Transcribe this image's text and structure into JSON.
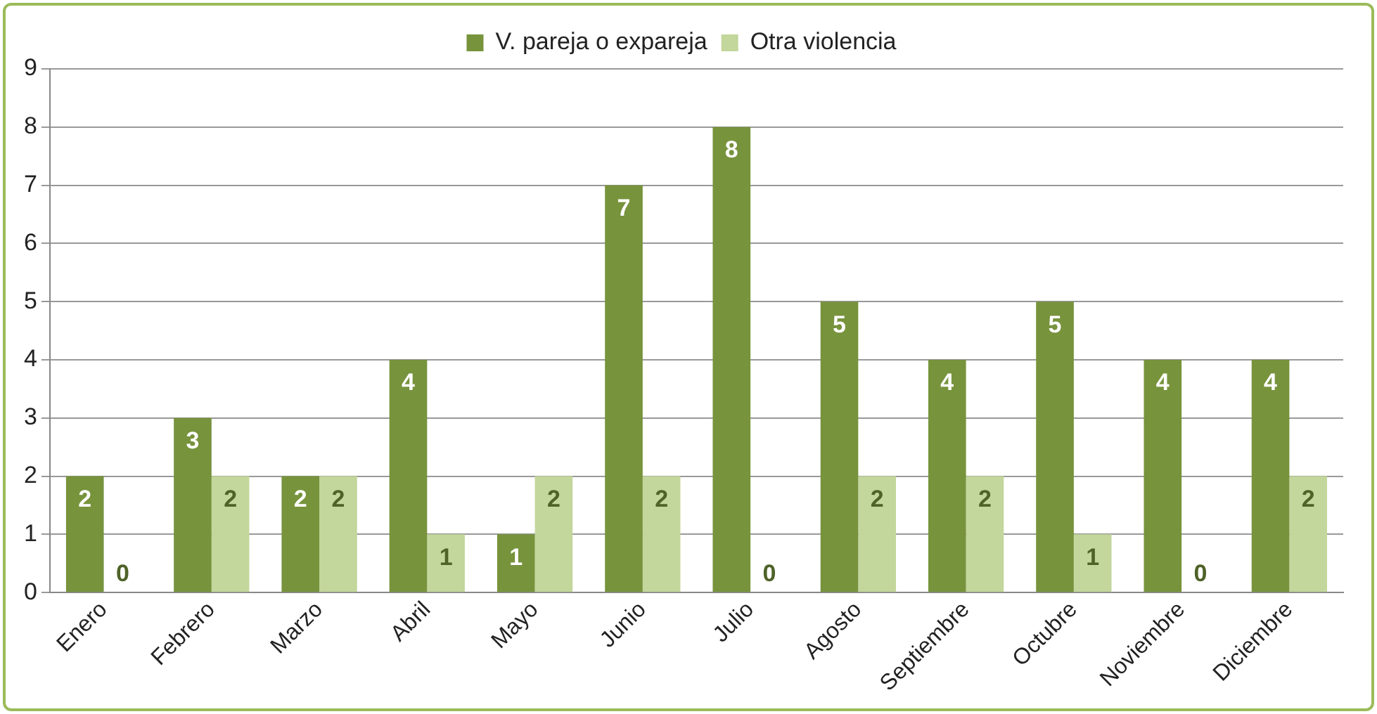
{
  "chart_data": {
    "type": "bar",
    "categories": [
      "Enero",
      "Febrero",
      "Marzo",
      "Abril",
      "Mayo",
      "Junio",
      "Julio",
      "Agosto",
      "Septiembre",
      "Octubre",
      "Noviembre",
      "Diciembre"
    ],
    "series": [
      {
        "name": "V. pareja o expareja",
        "color": "#77933c",
        "values": [
          2,
          3,
          2,
          4,
          1,
          7,
          8,
          5,
          4,
          5,
          4,
          4
        ]
      },
      {
        "name": "Otra violencia",
        "color": "#c3d69b",
        "values": [
          0,
          2,
          2,
          1,
          2,
          2,
          0,
          2,
          2,
          1,
          0,
          2
        ]
      }
    ],
    "ylim": [
      0,
      9
    ],
    "yticks": [
      0,
      1,
      2,
      3,
      4,
      5,
      6,
      7,
      8,
      9
    ],
    "grid": "y",
    "legend": "top",
    "data_labels": true
  }
}
